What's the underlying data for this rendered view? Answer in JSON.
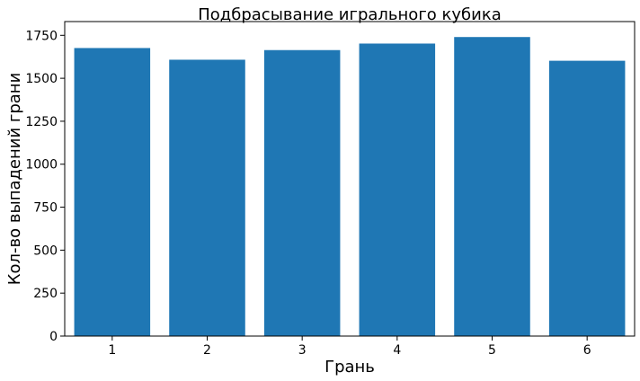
{
  "chart_data": {
    "type": "bar",
    "title": "Подбрасывание игрального кубика",
    "xlabel": "Грань",
    "ylabel": "Кол-во выпадений грани",
    "categories": [
      "1",
      "2",
      "3",
      "4",
      "5",
      "6"
    ],
    "values": [
      1676,
      1608,
      1664,
      1702,
      1740,
      1602
    ],
    "ylim": [
      0,
      1830
    ],
    "yticks": [
      0,
      250,
      500,
      750,
      1000,
      1250,
      1500,
      1750
    ],
    "grid": false,
    "legend": "none",
    "colors": {
      "bar": "#1f77b4",
      "axis": "#000000",
      "background": "#ffffff"
    }
  }
}
